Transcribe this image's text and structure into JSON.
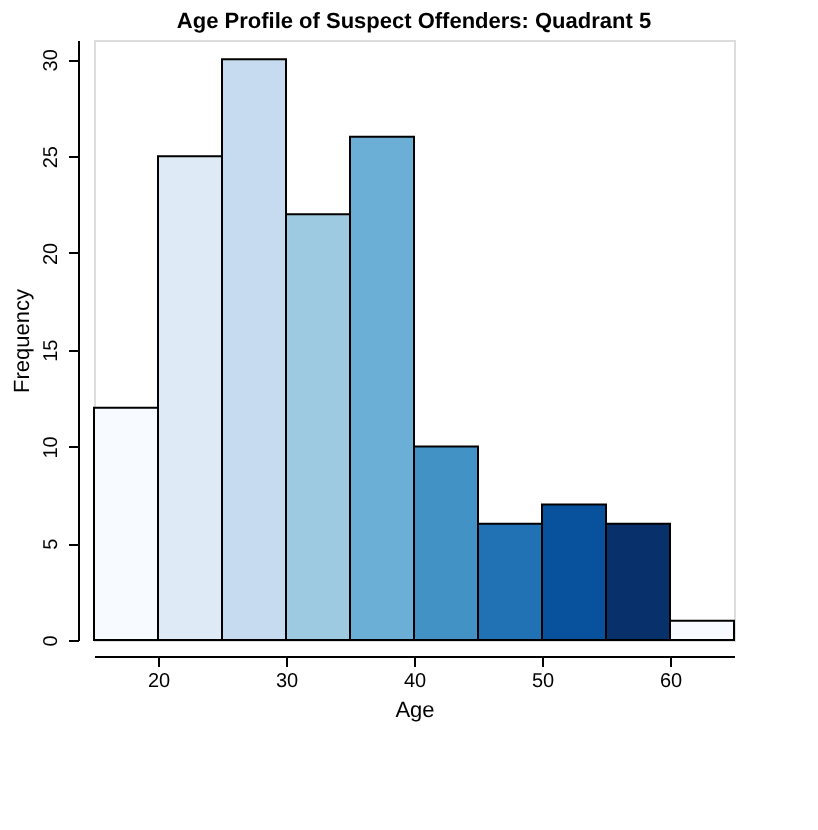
{
  "chart_data": {
    "type": "histogram",
    "title": "Age Profile of Suspect Offenders: Quadrant 5",
    "xlabel": "Age",
    "ylabel": "Frequency",
    "bins": [
      15,
      20,
      25,
      30,
      35,
      40,
      45,
      50,
      55,
      60,
      65
    ],
    "values": [
      12,
      25,
      30,
      22,
      26,
      10,
      6,
      7,
      6,
      1
    ],
    "colors": [
      "#f7fbff",
      "#deebf7",
      "#c6dbef",
      "#9ecae1",
      "#6baed6",
      "#4292c6",
      "#2171b5",
      "#08519c",
      "#08306b",
      "#f7fbff"
    ],
    "xlim": [
      15,
      65
    ],
    "ylim": [
      0,
      31
    ],
    "xticks": [
      20,
      30,
      40,
      50,
      60
    ],
    "yticks": [
      0,
      5,
      10,
      15,
      20,
      25,
      30
    ],
    "grid": false,
    "legend": false
  }
}
